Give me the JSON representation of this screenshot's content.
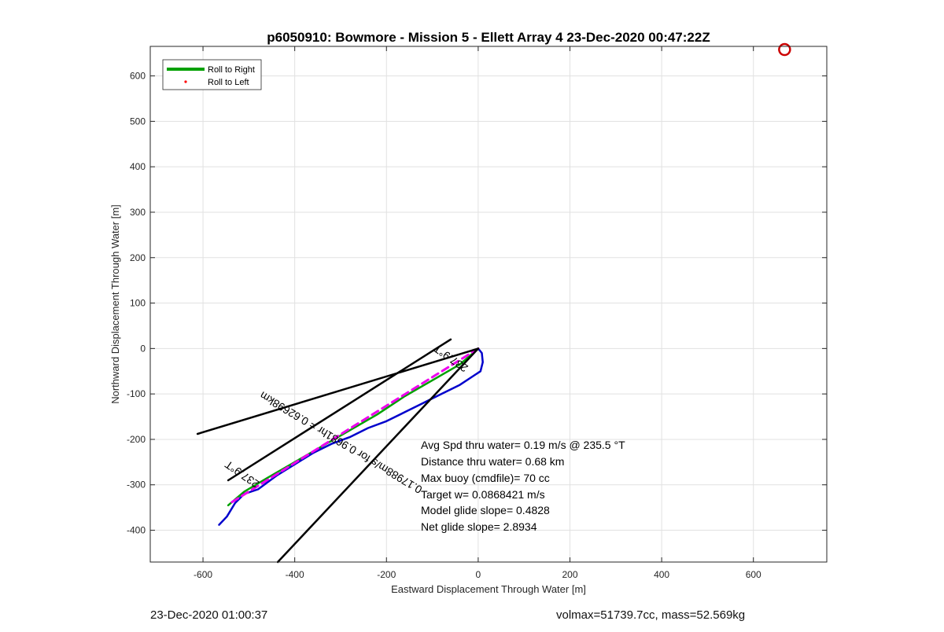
{
  "chart_data": {
    "type": "line",
    "title": "p6050910: Bowmore - Mission 5 - Ellett Array 4 23-Dec-2020 00:47:22Z",
    "xlabel": "Eastward Displacement Through Water [m]",
    "ylabel": "Northward Displacement Through Water [m]",
    "xlim": [
      -715,
      760
    ],
    "ylim": [
      -470,
      665
    ],
    "xticks": [
      -600,
      -400,
      -200,
      0,
      200,
      400,
      600
    ],
    "xtick_labels": [
      "-600",
      "-400",
      "-200",
      "0",
      "200",
      "400",
      "600"
    ],
    "yticks": [
      -400,
      -300,
      -200,
      -100,
      0,
      100,
      200,
      300,
      400,
      500,
      600
    ],
    "ytick_labels": [
      "-400",
      "-300",
      "-200",
      "-100",
      "0",
      "100",
      "200",
      "300",
      "400",
      "500",
      "600"
    ],
    "grid": true,
    "legend": {
      "placement": "top-left",
      "entries": [
        {
          "label": "Roll to Right",
          "color": "#00a000",
          "style": "line"
        },
        {
          "label": "Roll to Left",
          "color": "#ff0000",
          "style": "dot"
        }
      ]
    },
    "series": [
      {
        "name": "Roll to Right",
        "color": "#00a000",
        "x": [
          0,
          -40,
          -100,
          -160,
          -220,
          -280,
          -340,
          -400,
          -460,
          -510,
          -545
        ],
        "y": [
          0,
          -35,
          -70,
          -105,
          -145,
          -180,
          -215,
          -250,
          -285,
          -315,
          -345
        ]
      },
      {
        "color": "#0000cc",
        "x": [
          0,
          8,
          10,
          5,
          -10,
          -40,
          -80,
          -120,
          -160,
          -200,
          -240,
          -280,
          -320,
          -360,
          -400,
          -440,
          -480,
          -510,
          -530,
          -548,
          -565
        ],
        "y": [
          0,
          -10,
          -30,
          -50,
          -60,
          -80,
          -100,
          -120,
          -140,
          -160,
          -175,
          -195,
          -210,
          -230,
          -255,
          -280,
          -310,
          -320,
          -340,
          -370,
          -388
        ]
      },
      {
        "color": "#ee00ee",
        "style": "dashed",
        "x": [
          0,
          -540
        ],
        "y": [
          0,
          -340
        ]
      },
      {
        "color": "#000000",
        "x": [
          0,
          -612
        ],
        "y": [
          0,
          -188
        ]
      },
      {
        "color": "#000000",
        "x": [
          0,
          -437
        ],
        "y": [
          0,
          -470
        ]
      },
      {
        "color": "#000000",
        "x": [
          -60,
          -545
        ],
        "y": [
          20,
          -290
        ]
      }
    ],
    "markers": [
      {
        "shape": "circle",
        "color": "#cc0000",
        "x": 668,
        "y": 658
      }
    ],
    "annotations": [
      {
        "text": "237.9°T",
        "x": -55,
        "y": -15,
        "angle": 35
      },
      {
        "text": "0.17988m/s for 0.9681hr = 0.62698km",
        "x": -295,
        "y": -200,
        "angle": 31
      },
      {
        "text": "237.9°T",
        "x": -510,
        "y": -270,
        "angle": 35
      }
    ],
    "stats": [
      "Avg Spd thru water=  0.19 m/s @ 235.5 °T",
      "Distance thru water=  0.68 km",
      "Max buoy (cmdfile)= 70 cc",
      "Target w= 0.0868421 m/s",
      "Model glide slope= 0.4828",
      "Net glide slope= 2.8934"
    ]
  },
  "footer": {
    "timestamp": "23-Dec-2020 01:00:37",
    "volume_mass": "volmax=51739.7cc, mass=52.569kg"
  }
}
